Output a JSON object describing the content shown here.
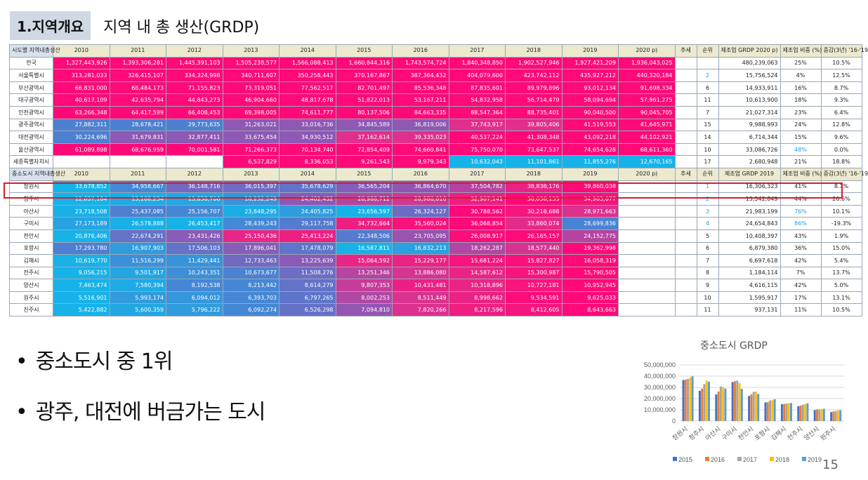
{
  "header": {
    "tag": "1.지역개요",
    "subtitle": "지역 내 총 생산(GRDP)"
  },
  "table_top": {
    "label_header": "시도별 지역내총생산",
    "years": [
      "2010",
      "2011",
      "2012",
      "2013",
      "2014",
      "2015",
      "2016",
      "2017",
      "2018",
      "2019",
      "2020 p)"
    ],
    "trend_header": "추세",
    "rank_header": "순위",
    "mfg_header": "제조업 GRDP 2020 p)",
    "share_header": "제조업 비중 (%)",
    "growth_header": "증감(3년) '16-'19",
    "rows": [
      {
        "name": "전국",
        "v": [
          "1,327,443,926",
          "1,393,306,281",
          "1,445,391,103",
          "1,505,238,577",
          "1,566,088,413",
          "1,660,844,316",
          "1,743,574,724",
          "1,840,348,850",
          "1,902,527,946",
          "1,927,421,209",
          "1,936,043,025"
        ],
        "rank": "",
        "mfg": "480,239,063",
        "share": "25%",
        "growth": "10.5%"
      },
      {
        "name": "서울특별시",
        "v": [
          "313,281,033",
          "326,415,107",
          "334,324,998",
          "340,711,607",
          "350,258,443",
          "370,167,867",
          "387,364,432",
          "404,079,600",
          "423,742,112",
          "435,927,212",
          "440,320,184"
        ],
        "rank": "2",
        "mfg": "15,756,524",
        "share": "4%",
        "growth": "12.5%"
      },
      {
        "name": "부산광역시",
        "v": [
          "66,831,000",
          "68,484,173",
          "71,155,823",
          "73,319,051",
          "77,562,517",
          "82,701,497",
          "85,536,348",
          "87,835,601",
          "89,979,896",
          "93,012,134",
          "91,698,334"
        ],
        "rank": "6",
        "mfg": "14,933,911",
        "share": "16%",
        "growth": "8.7%"
      },
      {
        "name": "대구광역시",
        "v": [
          "40,617,109",
          "42,635,794",
          "44,843,273",
          "46,904,660",
          "48,817,678",
          "51,822,013",
          "53,167,211",
          "54,832,958",
          "56,714,479",
          "58,094,694",
          "57,961,275"
        ],
        "rank": "11",
        "mfg": "10,613,900",
        "share": "18%",
        "growth": "9.3%"
      },
      {
        "name": "인천광역시",
        "v": [
          "63,266,348",
          "64,417,599",
          "66,408,453",
          "69,398,005",
          "74,611,777",
          "80,137,506",
          "84,663,335",
          "88,547,364",
          "88,735,401",
          "90,040,500",
          "90,045,705"
        ],
        "rank": "7",
        "mfg": "21,027,314",
        "share": "23%",
        "growth": "6.4%"
      },
      {
        "name": "광주광역시",
        "v": [
          "27,882,311",
          "28,678,421",
          "29,773,635",
          "31,263,021",
          "33,016,736",
          "34,845,589",
          "36,819,006",
          "37,743,917",
          "39,805,406",
          "41,519,553",
          "41,645,971"
        ],
        "rank": "15",
        "mfg": "9,988,993",
        "share": "24%",
        "growth": "12.8%"
      },
      {
        "name": "대전광역시",
        "v": [
          "30,224,696",
          "31,679,831",
          "32,877,411",
          "33,675,454",
          "34,930,512",
          "37,162,614",
          "39,335,023",
          "40,537,224",
          "41,308,348",
          "43,092,218",
          "44,102,921"
        ],
        "rank": "14",
        "mfg": "6,714,344",
        "share": "15%",
        "growth": "9.6%"
      },
      {
        "name": "울산광역시",
        "v": [
          "61,089,898",
          "68,676,959",
          "70,001,581",
          "71,266,373",
          "70,134,740",
          "72,854,409",
          "74,660,841",
          "75,750,070",
          "73,647,537",
          "74,654,628",
          "68,611,360"
        ],
        "rank": "10",
        "mfg": "33,086,726",
        "share": "48%",
        "growth": "0.0%"
      },
      {
        "name": "세종특별자치시",
        "v": [
          "",
          "",
          "",
          "6,537,829",
          "8,336,053",
          "9,261,543",
          "9,979,343",
          "10,632,043",
          "11,101,861",
          "11,855,276",
          "12,670,165"
        ],
        "rank": "17",
        "mfg": "2,680,948",
        "share": "21%",
        "growth": "18.8%"
      }
    ]
  },
  "table_bottom": {
    "label_header": "중소도시 지역내총생산",
    "years": [
      "2010",
      "2011",
      "2012",
      "2013",
      "2014",
      "2015",
      "2016",
      "2017",
      "2018",
      "2019",
      "2020 p)"
    ],
    "trend_header": "추세",
    "rank_header": "순위",
    "mfg_header": "제조업 GRDP 2019",
    "share_header": "제조업 비중 (%)",
    "growth_header": "증감(3년) '16-'19",
    "rows": [
      {
        "name": "창원시",
        "v": [
          "33,678,852",
          "34,958,667",
          "36,148,716",
          "36,015,397",
          "35,678,629",
          "36,565,204",
          "36,864,670",
          "37,504,782",
          "38,838,176",
          "39,860,038",
          ""
        ],
        "rank": "1",
        "mfg": "16,306,323",
        "share": "41%",
        "growth": "8.1%"
      },
      {
        "name": "청주시",
        "v": [
          "12,637,184",
          "13,168,254",
          "13,858,706",
          "16,232,249",
          "24,402,432",
          "26,988,712",
          "28,986,816",
          "32,907,141",
          "36,038,153",
          "34,965,677",
          ""
        ],
        "rank": "2",
        "mfg": "15,542,849",
        "share": "44%",
        "growth": "20.6%"
      },
      {
        "name": "아산시",
        "v": [
          "23,718,508",
          "25,437,085",
          "25,156,707",
          "23,848,295",
          "24,405,825",
          "23,656,597",
          "26,324,127",
          "30,788,562",
          "30,218,688",
          "28,971,663",
          ""
        ],
        "rank": "3",
        "mfg": "21,983,199",
        "share": "76%",
        "growth": "10.1%"
      },
      {
        "name": "구미시",
        "v": [
          "27,173,189",
          "26,578,888",
          "26,453,417",
          "28,439,243",
          "29,117,758",
          "34,732,664",
          "35,560,024",
          "36,068,854",
          "33,860,074",
          "28,699,836",
          ""
        ],
        "rank": "4",
        "mfg": "24,654,843",
        "share": "86%",
        "growth": "-19.3%"
      },
      {
        "name": "천안시",
        "v": [
          "20,876,406",
          "22,674,291",
          "23,431,426",
          "25,150,436",
          "25,413,224",
          "22,348,506",
          "23,705,095",
          "26,008,917",
          "26,165,157",
          "24,152,775",
          ""
        ],
        "rank": "5",
        "mfg": "10,408,397",
        "share": "43%",
        "growth": "1.9%"
      },
      {
        "name": "포항시",
        "v": [
          "17,293,780",
          "16,907,903",
          "17,506,103",
          "17,896,041",
          "17,478,079",
          "16,587,811",
          "16,832,213",
          "18,262,287",
          "18,577,440",
          "19,362,998",
          ""
        ],
        "rank": "6",
        "mfg": "6,879,380",
        "share": "36%",
        "growth": "15.0%"
      },
      {
        "name": "김해시",
        "v": [
          "10,619,770",
          "11,516,299",
          "11,429,441",
          "12,733,463",
          "13,225,639",
          "15,064,592",
          "15,229,177",
          "15,681,224",
          "15,827,827",
          "16,058,319",
          ""
        ],
        "rank": "7",
        "mfg": "6,697,618",
        "share": "42%",
        "growth": "5.4%"
      },
      {
        "name": "전주시",
        "v": [
          "9,056,215",
          "9,501,917",
          "10,243,351",
          "10,673,677",
          "11,508,276",
          "13,251,346",
          "13,886,080",
          "14,587,612",
          "15,300,987",
          "15,790,505",
          ""
        ],
        "rank": "8",
        "mfg": "1,184,114",
        "share": "7%",
        "growth": "13.7%"
      },
      {
        "name": "양산시",
        "v": [
          "7,463,474",
          "7,580,394",
          "8,192,538",
          "8,213,442",
          "8,614,279",
          "9,807,353",
          "10,431,481",
          "10,318,896",
          "10,727,181",
          "10,952,945",
          ""
        ],
        "rank": "9",
        "mfg": "4,616,115",
        "share": "42%",
        "growth": "5.0%"
      },
      {
        "name": "원주시",
        "v": [
          "5,516,901",
          "5,993,174",
          "6,094,012",
          "6,393,703",
          "6,797,265",
          "8,002,253",
          "8,511,449",
          "8,998,662",
          "9,534,591",
          "9,625,033",
          ""
        ],
        "rank": "10",
        "mfg": "1,595,917",
        "share": "17%",
        "growth": "13.1%"
      },
      {
        "name": "진주시",
        "v": [
          "5,422,882",
          "5,600,359",
          "5,796,222",
          "6,092,274",
          "6,526,298",
          "7,094,810",
          "7,820,266",
          "8,217,596",
          "8,412,605",
          "8,643,663",
          ""
        ],
        "rank": "11",
        "mfg": "937,131",
        "share": "11%",
        "growth": "10.5%"
      }
    ]
  },
  "bullets": [
    "중소도시 중 1위",
    "광주, 대전에 버금가는 도시"
  ],
  "chart_data": {
    "type": "bar",
    "title": "중소도시 GRDP",
    "categories": [
      "창원시",
      "청주시",
      "아산시",
      "구미시",
      "천안시",
      "포항시",
      "김해시",
      "전주시",
      "양산시",
      "원주시"
    ],
    "series": [
      {
        "name": "2015",
        "color": "#4472c4",
        "values": [
          36565204,
          26988712,
          23656597,
          34732664,
          22348506,
          16587811,
          15064592,
          13251346,
          9807353,
          8002253
        ]
      },
      {
        "name": "2016",
        "color": "#ed7d31",
        "values": [
          36864670,
          28986816,
          26324127,
          35560024,
          23705095,
          16832213,
          15229177,
          13886080,
          10431481,
          8511449
        ]
      },
      {
        "name": "2017",
        "color": "#a5a5a5",
        "values": [
          37504782,
          32907141,
          30788562,
          36068854,
          26008917,
          18262287,
          15681224,
          14587612,
          10318896,
          8998662
        ]
      },
      {
        "name": "2018",
        "color": "#ffc000",
        "values": [
          38838176,
          36038153,
          30218688,
          33860074,
          26165157,
          18577440,
          15827827,
          15300987,
          10727181,
          9534591
        ]
      },
      {
        "name": "2019",
        "color": "#5b9bd5",
        "values": [
          39860038,
          34965677,
          28971663,
          28699836,
          24152775,
          19362998,
          16058319,
          15790505,
          10952945,
          9625033
        ]
      }
    ],
    "yticks": [
      "50,000,000",
      "40,000,000",
      "30,000,000",
      "20,000,000",
      "10,000,000",
      "0"
    ],
    "ylim": [
      0,
      50000000
    ],
    "grid": true,
    "legend": "bottom"
  },
  "page_number": "15"
}
